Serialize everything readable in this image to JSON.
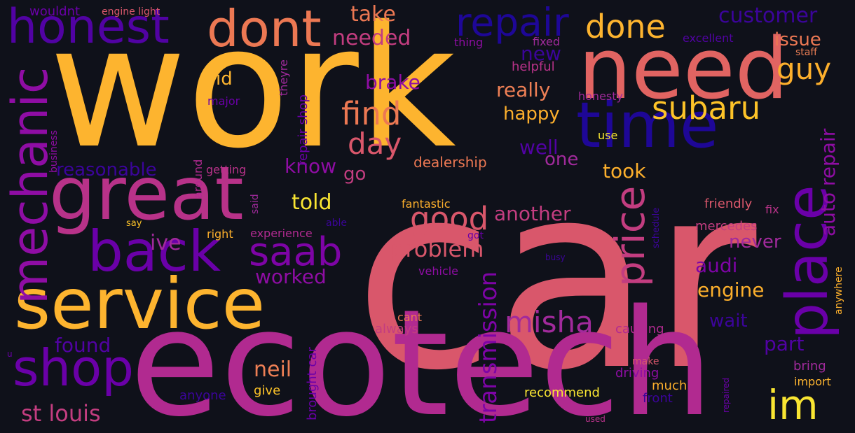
{
  "colors": {
    "background": "#0f111a",
    "palette": [
      "#f9d13a",
      "#fcaf2c",
      "#ee7f55",
      "#d9576b",
      "#c33d80",
      "#a12a9c",
      "#7e04a6",
      "#5a02a3",
      "#2c0594",
      "#0d0887"
    ]
  },
  "words": [
    {
      "text": "car",
      "color": "#d9576b",
      "vertical": false
    },
    {
      "text": "work",
      "color": "#fdb42f",
      "vertical": false
    },
    {
      "text": "ecotech",
      "color": "#b12a90",
      "vertical": false
    },
    {
      "text": "need",
      "color": "#e16462",
      "vertical": false
    },
    {
      "text": "time",
      "color": "#1e0797",
      "vertical": false
    },
    {
      "text": "great",
      "color": "#b83289",
      "vertical": false
    },
    {
      "text": "service",
      "color": "#fdb42f",
      "vertical": false
    },
    {
      "text": "place",
      "color": "#6a00a8",
      "vertical": true
    },
    {
      "text": "honest",
      "color": "#5102a3",
      "vertical": false
    },
    {
      "text": "back",
      "color": "#6a00a8",
      "vertical": false
    },
    {
      "text": "dont",
      "color": "#ec7853",
      "vertical": false
    },
    {
      "text": "mechanic",
      "color": "#8f0da4",
      "vertical": true
    },
    {
      "text": "shop",
      "color": "#6a00a8",
      "vertical": false
    },
    {
      "text": "im",
      "color": "#f9e532",
      "vertical": false
    },
    {
      "text": "price",
      "color": "#c33d80",
      "vertical": true
    },
    {
      "text": "repair",
      "color": "#1e0797",
      "vertical": false
    },
    {
      "text": "done",
      "color": "#fdb42f",
      "vertical": false
    },
    {
      "text": "saab",
      "color": "#7e04a6",
      "vertical": false
    },
    {
      "text": "find",
      "color": "#ec7853",
      "vertical": false
    },
    {
      "text": "subaru",
      "color": "#fdc328",
      "vertical": false
    },
    {
      "text": "good",
      "color": "#d9576b",
      "vertical": false
    },
    {
      "text": "misha",
      "color": "#a12a9c",
      "vertical": false
    },
    {
      "text": "day",
      "color": "#d9576b",
      "vertical": false
    },
    {
      "text": "guy",
      "color": "#fcaf2c",
      "vertical": false
    },
    {
      "text": "customer",
      "color": "#3b049a",
      "vertical": false
    },
    {
      "text": "st louis",
      "color": "#c33d80",
      "vertical": false
    },
    {
      "text": "transmission",
      "color": "#7e04a6",
      "vertical": true
    },
    {
      "text": "problem",
      "color": "#d9576b",
      "vertical": false
    },
    {
      "text": "take",
      "color": "#ec7853",
      "vertical": false
    },
    {
      "text": "needed",
      "color": "#c33d80",
      "vertical": false
    },
    {
      "text": "issue",
      "color": "#ec7853",
      "vertical": false
    },
    {
      "text": "auto repair",
      "color": "#8f0da4",
      "vertical": true
    },
    {
      "text": "told",
      "color": "#f9e532",
      "vertical": false
    },
    {
      "text": "another",
      "color": "#c33d80",
      "vertical": false
    },
    {
      "text": "really",
      "color": "#ee7f55",
      "vertical": false
    },
    {
      "text": "happy",
      "color": "#fcaf2c",
      "vertical": false
    },
    {
      "text": "brake",
      "color": "#8f0da4",
      "vertical": false
    },
    {
      "text": "neil",
      "color": "#ee7f55",
      "vertical": false
    },
    {
      "text": "audi",
      "color": "#7e04a6",
      "vertical": false
    },
    {
      "text": "engine",
      "color": "#fcaf2c",
      "vertical": false
    },
    {
      "text": "never",
      "color": "#a12a9c",
      "vertical": false
    },
    {
      "text": "found",
      "color": "#5102a3",
      "vertical": false
    },
    {
      "text": "took",
      "color": "#fcaf2c",
      "vertical": false
    },
    {
      "text": "reasonable",
      "color": "#3b049a",
      "vertical": false
    },
    {
      "text": "ive",
      "color": "#a12a9c",
      "vertical": false
    },
    {
      "text": "worked",
      "color": "#8f0da4",
      "vertical": false
    },
    {
      "text": "part",
      "color": "#5102a3",
      "vertical": false
    },
    {
      "text": "well",
      "color": "#5102a3",
      "vertical": false
    },
    {
      "text": "wait",
      "color": "#3b049a",
      "vertical": false
    },
    {
      "text": "new",
      "color": "#3b049a",
      "vertical": false
    },
    {
      "text": "know",
      "color": "#8f0da4",
      "vertical": false
    },
    {
      "text": "one",
      "color": "#a12a9c",
      "vertical": false
    },
    {
      "text": "go",
      "color": "#c33d80",
      "vertical": false
    },
    {
      "text": "id",
      "color": "#fdb42f",
      "vertical": false
    },
    {
      "text": "dealership",
      "color": "#ec7853",
      "vertical": false
    },
    {
      "text": "mercedes",
      "color": "#c33d80",
      "vertical": false
    },
    {
      "text": "repair shop",
      "color": "#6a00a8",
      "vertical": true
    },
    {
      "text": "bring",
      "color": "#a12a9c",
      "vertical": false
    },
    {
      "text": "friendly",
      "color": "#d9576b",
      "vertical": false
    },
    {
      "text": "helpful",
      "color": "#b83289",
      "vertical": false
    },
    {
      "text": "brought car",
      "color": "#6a00a8",
      "vertical": true
    },
    {
      "text": "driving",
      "color": "#8f0da4",
      "vertical": false
    },
    {
      "text": "recommend",
      "color": "#f9e532",
      "vertical": false
    },
    {
      "text": "always",
      "color": "#c33d80",
      "vertical": false
    },
    {
      "text": "causing",
      "color": "#b12a90",
      "vertical": false
    },
    {
      "text": "much",
      "color": "#fcaf2c",
      "vertical": false
    },
    {
      "text": "give",
      "color": "#fdc328",
      "vertical": false
    },
    {
      "text": "anyone",
      "color": "#3b049a",
      "vertical": false
    },
    {
      "text": "front",
      "color": "#3b049a",
      "vertical": false
    },
    {
      "text": "import",
      "color": "#fdb42f",
      "vertical": false
    },
    {
      "text": "wouldnt",
      "color": "#6a00a8",
      "vertical": false
    },
    {
      "text": "engine light",
      "color": "#d9576b",
      "vertical": false
    },
    {
      "text": "excellent",
      "color": "#5102a3",
      "vertical": false
    },
    {
      "text": "thing",
      "color": "#8f0da4",
      "vertical": false
    },
    {
      "text": "fixed",
      "color": "#a12a9c",
      "vertical": false
    },
    {
      "text": "staff",
      "color": "#ee7f55",
      "vertical": false
    },
    {
      "text": "honesty",
      "color": "#a12a9c",
      "vertical": false
    },
    {
      "text": "theyre",
      "color": "#a12a9c",
      "vertical": true
    },
    {
      "text": "major",
      "color": "#6a00a8",
      "vertical": false
    },
    {
      "text": "business",
      "color": "#8f0da4",
      "vertical": true
    },
    {
      "text": "getting",
      "color": "#b83289",
      "vertical": false
    },
    {
      "text": "around",
      "color": "#b12a90",
      "vertical": true
    },
    {
      "text": "said",
      "color": "#a12a9c",
      "vertical": true
    },
    {
      "text": "use",
      "color": "#f9e532",
      "vertical": false
    },
    {
      "text": "fantastic",
      "color": "#fcaf2c",
      "vertical": false
    },
    {
      "text": "right",
      "color": "#fcaf2c",
      "vertical": false
    },
    {
      "text": "experience",
      "color": "#b12a90",
      "vertical": false
    },
    {
      "text": "able",
      "color": "#3b049a",
      "vertical": false
    },
    {
      "text": "got",
      "color": "#6a00a8",
      "vertical": false
    },
    {
      "text": "say",
      "color": "#fdc328",
      "vertical": false
    },
    {
      "text": "vehicle",
      "color": "#8f0da4",
      "vertical": false
    },
    {
      "text": "busy",
      "color": "#3b049a",
      "vertical": false
    },
    {
      "text": "fix",
      "color": "#b83289",
      "vertical": false
    },
    {
      "text": "schedule",
      "color": "#3b049a",
      "vertical": true
    },
    {
      "text": "cant",
      "color": "#ec7853",
      "vertical": false
    },
    {
      "text": "make",
      "color": "#d9576b",
      "vertical": false
    },
    {
      "text": "anywhere",
      "color": "#fcaf2c",
      "vertical": true
    },
    {
      "text": "repaired",
      "color": "#6a00a8",
      "vertical": true
    },
    {
      "text": "used",
      "color": "#b83289",
      "vertical": false
    },
    {
      "text": "u",
      "color": "#6a00a8",
      "vertical": false
    }
  ]
}
